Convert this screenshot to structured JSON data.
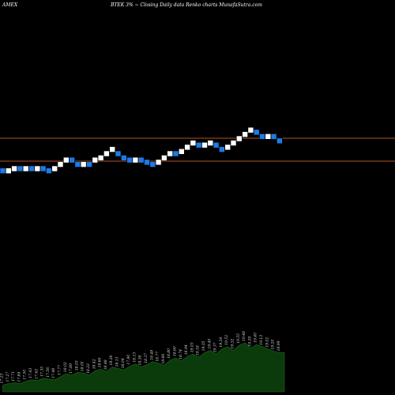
{
  "header": {
    "exchange": "AMEX",
    "title": "BTEK 3% ~  Closing Daily data  Renko  charts MunafaSutra.com"
  },
  "colors": {
    "background": "#000000",
    "up_brick": "#ffffff",
    "down_brick": "#1e7ae6",
    "level_line": "#b0562a",
    "volume_fill": "#0b3a0b",
    "volume_stroke": "#1f6b1f"
  },
  "chart_data": {
    "type": "renko",
    "brick_size_pct": 3,
    "levels": [
      19.02,
      17.95
    ],
    "bricks": [
      {
        "dir": "down",
        "value": 17.5
      },
      {
        "dir": "up",
        "value": 17.5
      },
      {
        "dir": "up",
        "value": 17.6
      },
      {
        "dir": "down",
        "value": 17.6
      },
      {
        "dir": "up",
        "value": 17.6
      },
      {
        "dir": "down",
        "value": 17.6
      },
      {
        "dir": "up",
        "value": 17.6
      },
      {
        "dir": "down",
        "value": 17.6
      },
      {
        "dir": "down",
        "value": 17.5
      },
      {
        "dir": "up",
        "value": 17.6
      },
      {
        "dir": "up",
        "value": 17.8
      },
      {
        "dir": "up",
        "value": 18.0
      },
      {
        "dir": "down",
        "value": 18.0
      },
      {
        "dir": "down",
        "value": 17.8
      },
      {
        "dir": "up",
        "value": 17.8
      },
      {
        "dir": "down",
        "value": 17.8
      },
      {
        "dir": "up",
        "value": 18.0
      },
      {
        "dir": "up",
        "value": 18.1
      },
      {
        "dir": "up",
        "value": 18.3
      },
      {
        "dir": "up",
        "value": 18.5
      },
      {
        "dir": "down",
        "value": 18.3
      },
      {
        "dir": "down",
        "value": 18.1
      },
      {
        "dir": "down",
        "value": 18.0
      },
      {
        "dir": "up",
        "value": 18.0
      },
      {
        "dir": "down",
        "value": 18.0
      },
      {
        "dir": "down",
        "value": 17.9
      },
      {
        "dir": "down",
        "value": 17.8
      },
      {
        "dir": "up",
        "value": 17.9
      },
      {
        "dir": "up",
        "value": 18.1
      },
      {
        "dir": "up",
        "value": 18.3
      },
      {
        "dir": "down",
        "value": 18.3
      },
      {
        "dir": "up",
        "value": 18.4
      },
      {
        "dir": "up",
        "value": 18.6
      },
      {
        "dir": "up",
        "value": 18.8
      },
      {
        "dir": "down",
        "value": 18.7
      },
      {
        "dir": "up",
        "value": 18.7
      },
      {
        "dir": "up",
        "value": 18.8
      },
      {
        "dir": "down",
        "value": 18.7
      },
      {
        "dir": "down",
        "value": 18.5
      },
      {
        "dir": "up",
        "value": 18.6
      },
      {
        "dir": "up",
        "value": 18.8
      },
      {
        "dir": "up",
        "value": 19.0
      },
      {
        "dir": "up",
        "value": 19.2
      },
      {
        "dir": "up",
        "value": 19.4
      },
      {
        "dir": "down",
        "value": 19.3
      },
      {
        "dir": "down",
        "value": 19.1
      },
      {
        "dir": "up",
        "value": 19.1
      },
      {
        "dir": "down",
        "value": 19.1
      },
      {
        "dir": "down",
        "value": 18.9
      }
    ],
    "volume": [
      9,
      11,
      12,
      11,
      14,
      16,
      15,
      18,
      17,
      16,
      20,
      24,
      22,
      26,
      25,
      22,
      28,
      30,
      27,
      33,
      31,
      29,
      34,
      37,
      33,
      36,
      40,
      38,
      35,
      42,
      45,
      41,
      47,
      50,
      46,
      52,
      55,
      50,
      57,
      60,
      55,
      62,
      65,
      58,
      63,
      60,
      57,
      54,
      52
    ],
    "volume_labels": [
      "17.23",
      "17.27",
      "17.71",
      "17.84",
      "17.50",
      "17.43",
      "17.62",
      "17.35",
      "17.56",
      "17.48",
      "17.77",
      "18.02",
      "17.89",
      "18.03",
      "18.05",
      "18.22",
      "18.42",
      "18.60",
      "18.48",
      "18.26",
      "18.13",
      "18.04",
      "17.90",
      "18.13",
      "18.36",
      "18.37",
      "18.48",
      "18.77",
      "18.66",
      "18.80",
      "18.60",
      "18.74",
      "18.94",
      "19.03",
      "19.18",
      "19.35",
      "19.40",
      "19.37",
      "19.24",
      "19.52",
      "19.32",
      "19.55",
      "19.48",
      "19.29",
      "19.40",
      "19.13",
      "19.02",
      "19.20",
      "18.99"
    ]
  }
}
